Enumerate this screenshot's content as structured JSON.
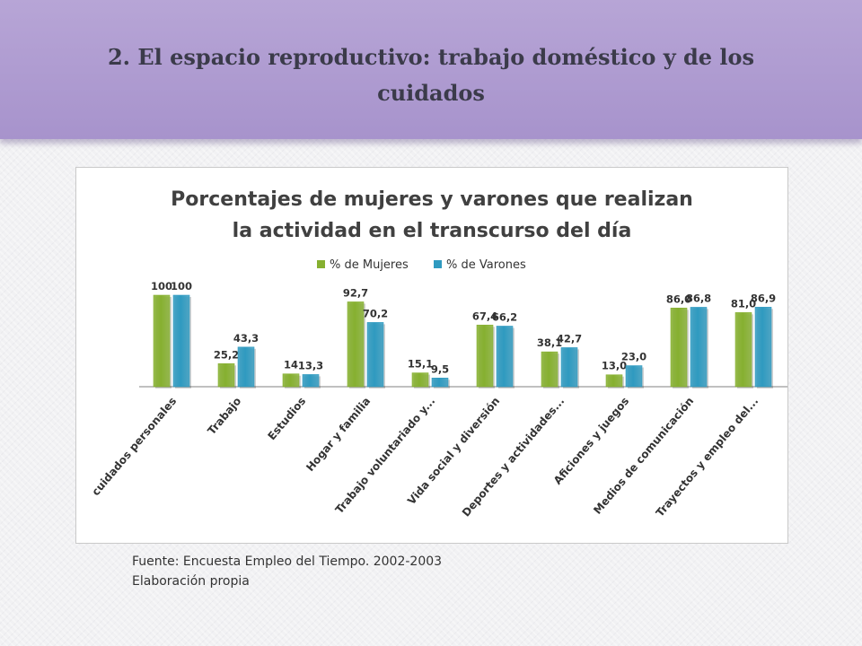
{
  "slide": {
    "title": "2. El espacio reproductivo: trabajo doméstico y de los cuidados"
  },
  "source": {
    "line1": "Fuente: Encuesta Empleo del Tiempo. 2002-2003",
    "line2": "Elaboración propia"
  },
  "colors": {
    "header": "#a995cf",
    "mujeres": "#86b030",
    "varones": "#2f9ac0"
  },
  "chart_data": {
    "type": "bar",
    "title_lines": [
      "Porcentajes de mujeres y varones que realizan",
      "la actividad en el transcurso del día"
    ],
    "legend_position": "top-center",
    "grid": false,
    "ylim": [
      0,
      100
    ],
    "categories": [
      "cuidados personales",
      "Trabajo",
      "Estudios",
      "Hogar y familia",
      "Trabajo voluntariado y...",
      "Vida social y diversión",
      "Deportes y actividades...",
      "Aficiones y juegos",
      "Medios de comunicación",
      "Trayectos y empleo del..."
    ],
    "series": [
      {
        "name": "% de Mujeres",
        "values": [
          100,
          25.2,
          14,
          92.7,
          15.1,
          67.4,
          38.1,
          13.0,
          86.0,
          81.0
        ],
        "labels": [
          "100",
          "25,2",
          "14",
          "92,7",
          "15,1",
          "67,4",
          "38,1",
          "13,0",
          "86,0",
          "81,0"
        ]
      },
      {
        "name": "% de Varones",
        "values": [
          100,
          43.3,
          13.3,
          70.2,
          9.5,
          66.2,
          42.7,
          23.0,
          86.8,
          86.9
        ],
        "labels": [
          "100",
          "43,3",
          "13,3",
          "70,2",
          "9,5",
          "66,2",
          "42,7",
          "23,0",
          "86,8",
          "86,9"
        ]
      }
    ]
  }
}
